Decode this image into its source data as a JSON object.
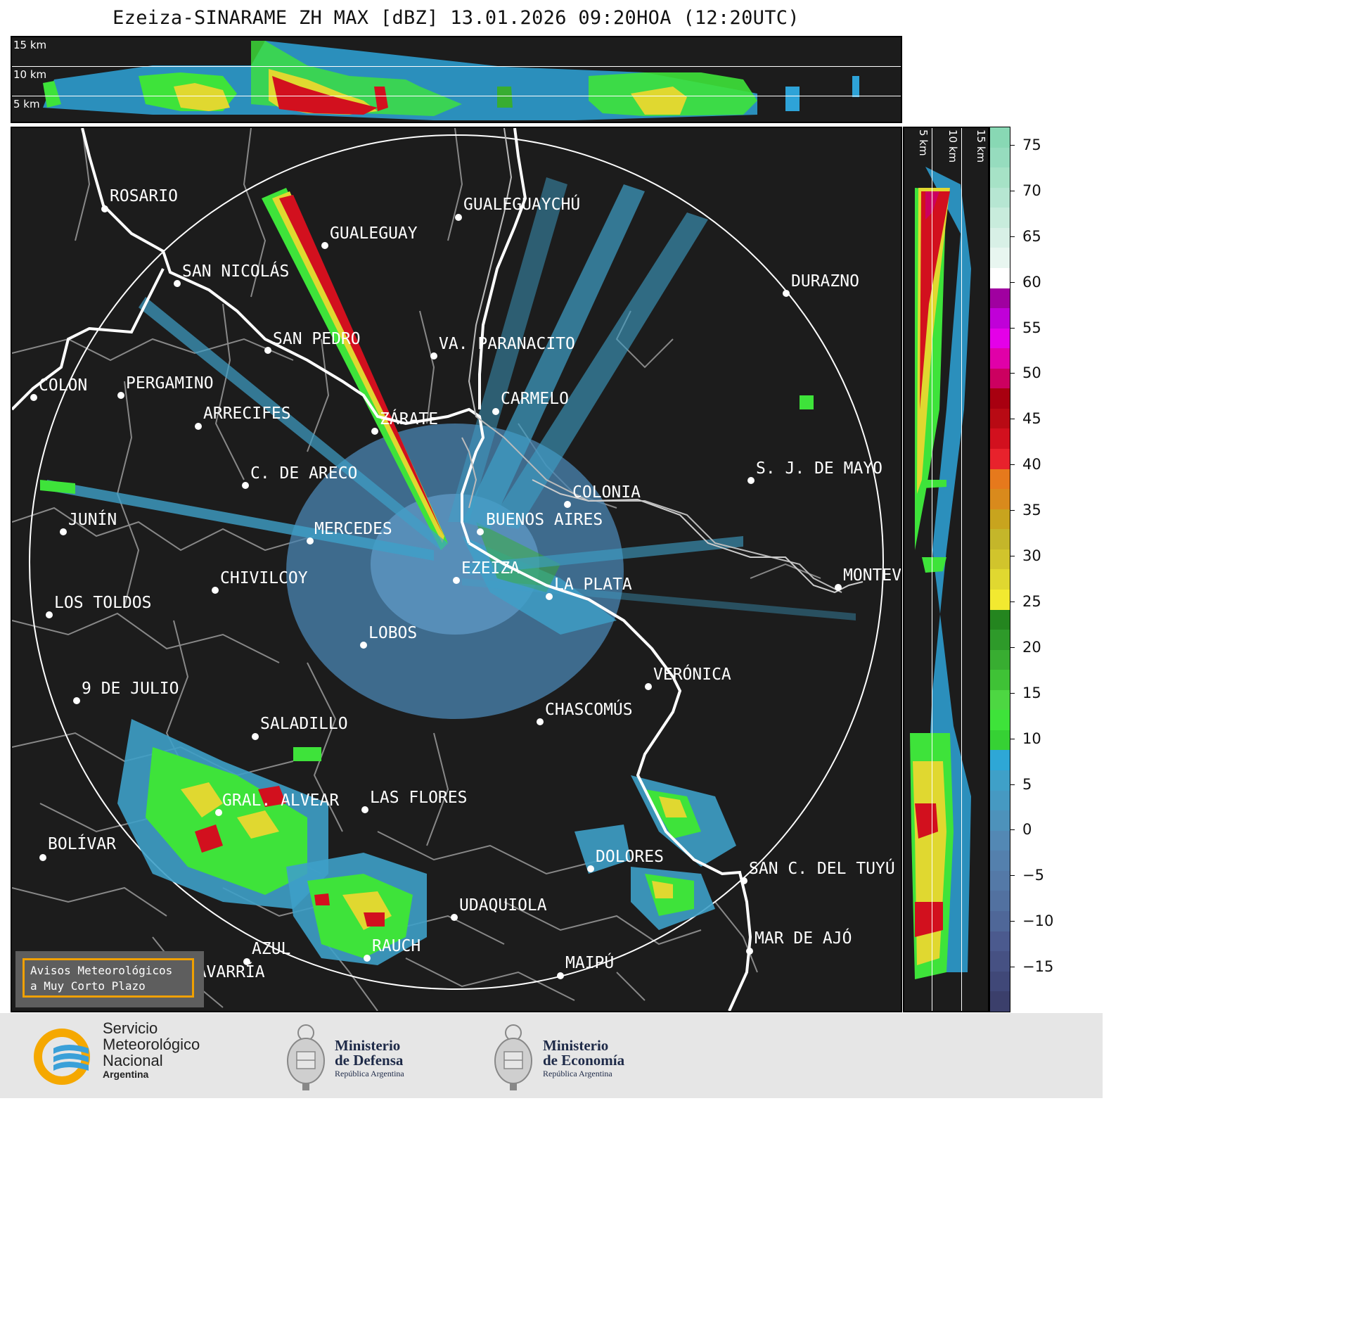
{
  "title": "Ezeiza-SINARAME ZH MAX [dBZ] 13.01.2026 09:20HOA (12:20UTC)",
  "height_panel": {
    "labels": [
      "15 km",
      "10 km",
      "5 km"
    ]
  },
  "side_panel": {
    "labels": [
      "5 km",
      "10 km",
      "15 km"
    ]
  },
  "colorbar": {
    "unit": "dBZ",
    "ticks": [
      "75",
      "70",
      "65",
      "60",
      "55",
      "50",
      "45",
      "40",
      "35",
      "30",
      "25",
      "20",
      "15",
      "10",
      "5",
      "0",
      "−5",
      "−10",
      "−15"
    ],
    "colors": [
      "#3b3f6b",
      "#404878",
      "#465183",
      "#4b5a8e",
      "#4f6798",
      "#5271a0",
      "#5479a7",
      "#5480ad",
      "#5388b4",
      "#4d92bb",
      "#4699c2",
      "#3fa0c8",
      "#2ea7d6",
      "#36d134",
      "#3ee33a",
      "#4dd742",
      "#3fc236",
      "#38ad31",
      "#2e9a2a",
      "#24851f",
      "#f2e930",
      "#e0d830",
      "#d1c42c",
      "#c4b62a",
      "#c8a41e",
      "#d98a1c",
      "#e6791c",
      "#e8222c",
      "#d2101e",
      "#b80a14",
      "#a80010",
      "#cc0060",
      "#e000a8",
      "#e400e8",
      "#c000d8",
      "#a000a0",
      "#ffffff",
      "#e8f6f0",
      "#d8f0e6",
      "#c8ecdc",
      "#b6e6d2",
      "#a6e2c6",
      "#96dcbe",
      "#88d8b4"
    ],
    "range": [
      -20,
      77
    ]
  },
  "map": {
    "cities": [
      {
        "name": "ROSARIO",
        "color": "#ffffff"
      },
      {
        "name": "GUALEGUAYCHÚ",
        "color": "#ffffff"
      },
      {
        "name": "GUALEGUAY",
        "color": "#ffffff"
      },
      {
        "name": "SAN NICOLÁS",
        "color": "#ffffff"
      },
      {
        "name": "DURAZNO",
        "color": "#ffffff"
      },
      {
        "name": "SAN PEDRO",
        "color": "#ffffff"
      },
      {
        "name": "VA. PARANACITO",
        "color": "#ffffff"
      },
      {
        "name": "COLON",
        "color": "#ffffff"
      },
      {
        "name": "PERGAMINO",
        "color": "#ffffff"
      },
      {
        "name": "CARMELO",
        "color": "#ffffff"
      },
      {
        "name": "ARRECIFES",
        "color": "#ffffff"
      },
      {
        "name": "ZÁRATE",
        "color": "#ffffff"
      },
      {
        "name": "C. DE ARECO",
        "color": "#ffffff"
      },
      {
        "name": "S. J. DE MAYO",
        "color": "#ffffff"
      },
      {
        "name": "COLONIA",
        "color": "#ffffff"
      },
      {
        "name": "JUNÍN",
        "color": "#ffffff"
      },
      {
        "name": "BUENOS AIRES",
        "color": "#ffffff"
      },
      {
        "name": "MERCEDES",
        "color": "#ffffff"
      },
      {
        "name": "MONTEV",
        "color": "#ffffff"
      },
      {
        "name": "EZEIZA",
        "color": "#ffffff"
      },
      {
        "name": "CHIVILCOY",
        "color": "#ffffff"
      },
      {
        "name": "LA PLATA",
        "color": "#ffffff"
      },
      {
        "name": "LOS TOLDOS",
        "color": "#ffffff"
      },
      {
        "name": "LOBOS",
        "color": "#ffffff"
      },
      {
        "name": "VERÓNICA",
        "color": "#ffffff"
      },
      {
        "name": "9 DE JULIO",
        "color": "#ffffff"
      },
      {
        "name": "CHASCOMÚS",
        "color": "#ffffff"
      },
      {
        "name": "SALADILLO",
        "color": "#ffffff"
      },
      {
        "name": "GRAL. ALVEAR",
        "color": "#ffffff"
      },
      {
        "name": "LAS FLORES",
        "color": "#ffffff"
      },
      {
        "name": "BOLÍVAR",
        "color": "#ffffff"
      },
      {
        "name": "DOLORES",
        "color": "#ffffff"
      },
      {
        "name": "SAN C. DEL TUYÚ",
        "color": "#ffffff"
      },
      {
        "name": "UDAQUIOLA",
        "color": "#ffffff"
      },
      {
        "name": "RAUCH",
        "color": "#ffffff"
      },
      {
        "name": "MAR DE AJÓ",
        "color": "#ffffff"
      },
      {
        "name": "AZUL",
        "color": "#ffffff"
      },
      {
        "name": "MAIPÚ",
        "color": "#ffffff"
      },
      {
        "name": "OLAVARRÍA",
        "color": "#ffffff"
      }
    ],
    "notice_line1": "Avisos Meteorológicos",
    "notice_line2": "a Muy Corto Plazo",
    "notice_border_color": "#f0a000"
  },
  "footer": {
    "smn": {
      "line1": "Servicio",
      "line2": "Meteorológico",
      "line3": "Nacional",
      "line4": "Argentina"
    },
    "defensa": {
      "line1": "Ministerio",
      "line2": "de Defensa",
      "line3": "República Argentina"
    },
    "economia": {
      "line1": "Ministerio",
      "line2": "de Economía",
      "line3": "República Argentina"
    }
  }
}
